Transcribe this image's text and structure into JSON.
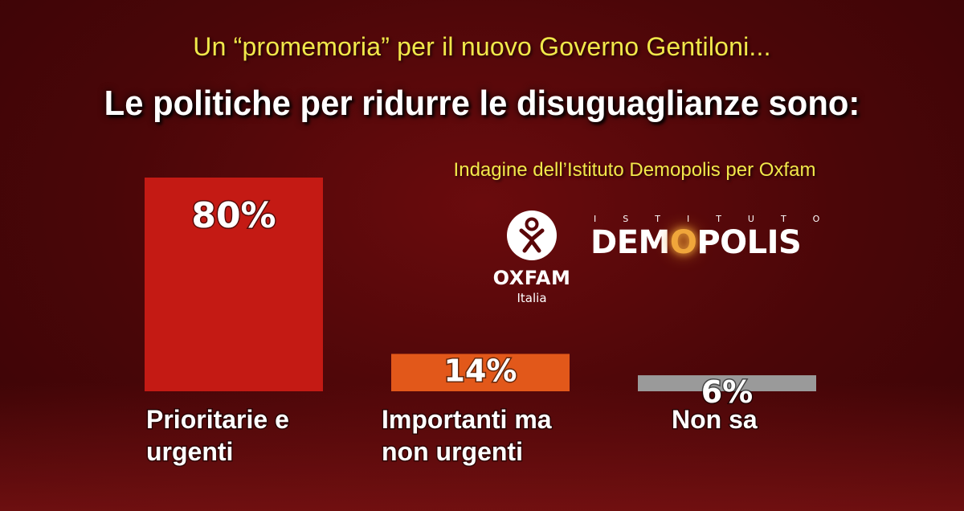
{
  "header": {
    "subtitle": "Un “promemoria” per il nuovo Governo Gentiloni...",
    "title": "Le politiche per ridurre le disuguaglianze sono:",
    "source": "Indagine dell’Istituto Demopolis per Oxfam"
  },
  "logos": {
    "oxfam": {
      "name": "OXFAM",
      "sub": "Italia",
      "icon": "oxfam-figure-icon"
    },
    "demopolis": {
      "small": "ISTITUTO",
      "pre": "DEM",
      "accent": "O",
      "post": "POLIS"
    }
  },
  "chart_data": {
    "type": "bar",
    "categories": [
      "Prioritarie e urgenti",
      "Importanti ma non urgenti",
      "Non sa"
    ],
    "category_lines": [
      [
        "Prioritarie e",
        "urgenti"
      ],
      [
        "Importanti ma",
        "non urgenti"
      ],
      [
        "Non sa"
      ]
    ],
    "values": [
      80,
      14,
      6
    ],
    "value_labels": [
      "80%",
      "14%",
      "6%"
    ],
    "colors": [
      "#c41a14",
      "#e2581a",
      "#9a9a9a"
    ],
    "ylim": [
      0,
      80
    ],
    "grid": false,
    "legend": "none"
  }
}
